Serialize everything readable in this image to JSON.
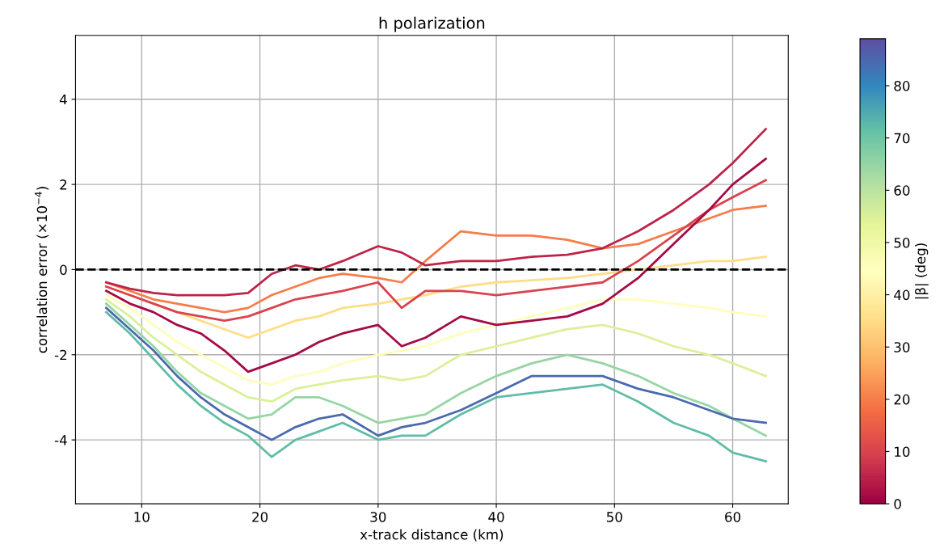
{
  "chart_data": {
    "type": "line",
    "title": "h polarization",
    "xlabel": "x-track distance (km)",
    "ylabel": "correlation error (×10$^{−4}$)",
    "clabel": "|β| (deg)",
    "x": [
      7,
      9,
      11,
      13,
      15,
      17,
      19,
      21,
      23,
      25,
      27,
      30,
      32,
      34,
      37,
      40,
      43,
      46,
      49,
      52,
      55,
      58,
      60,
      62.8
    ],
    "series": [
      {
        "color": "#fdfebd",
        "values": [
          -0.6,
          -0.9,
          -1.3,
          -1.7,
          -2.0,
          -2.3,
          -2.6,
          -2.7,
          -2.5,
          -2.4,
          -2.2,
          -2.0,
          -1.9,
          -1.8,
          -1.5,
          -1.3,
          -1.1,
          -0.9,
          -0.7,
          -0.7,
          -0.8,
          -0.9,
          -1.0,
          -1.1
        ]
      },
      {
        "color": "#fedd87",
        "values": [
          -0.4,
          -0.6,
          -0.8,
          -1.0,
          -1.2,
          -1.4,
          -1.6,
          -1.4,
          -1.2,
          -1.1,
          -0.9,
          -0.8,
          -0.7,
          -0.6,
          -0.4,
          -0.3,
          -0.25,
          -0.2,
          -0.1,
          0.0,
          0.1,
          0.2,
          0.2,
          0.3
        ]
      },
      {
        "color": "#dbf09a",
        "values": [
          -0.7,
          -1.1,
          -1.6,
          -2.0,
          -2.4,
          -2.7,
          -3.0,
          -3.1,
          -2.8,
          -2.7,
          -2.6,
          -2.5,
          -2.6,
          -2.5,
          -2.0,
          -1.8,
          -1.6,
          -1.4,
          -1.3,
          -1.5,
          -1.8,
          -2.0,
          -2.2,
          -2.5
        ]
      },
      {
        "color": "#96d5a4",
        "values": [
          -0.8,
          -1.3,
          -1.8,
          -2.4,
          -2.9,
          -3.2,
          -3.5,
          -3.4,
          -3.0,
          -3.0,
          -3.2,
          -3.6,
          -3.5,
          -3.4,
          -2.9,
          -2.5,
          -2.2,
          -2.0,
          -2.2,
          -2.5,
          -2.9,
          -3.2,
          -3.5,
          -3.9
        ]
      },
      {
        "color": "#4a69ae",
        "values": [
          -0.9,
          -1.4,
          -1.9,
          -2.5,
          -3.0,
          -3.4,
          -3.7,
          -4.0,
          -3.7,
          -3.5,
          -3.4,
          -3.9,
          -3.7,
          -3.6,
          -3.3,
          -2.9,
          -2.5,
          -2.5,
          -2.5,
          -2.8,
          -3.0,
          -3.3,
          -3.5,
          -3.6
        ]
      },
      {
        "color": "#61bca7",
        "values": [
          -1.0,
          -1.5,
          -2.1,
          -2.7,
          -3.2,
          -3.6,
          -3.9,
          -4.4,
          -4.0,
          -3.8,
          -3.6,
          -4.0,
          -3.9,
          -3.9,
          -3.4,
          -3.0,
          -2.9,
          -2.8,
          -2.7,
          -3.1,
          -3.6,
          -3.9,
          -4.3,
          -4.5
        ]
      },
      {
        "color": "#f67d4a",
        "values": [
          -0.3,
          -0.5,
          -0.7,
          -0.8,
          -0.9,
          -1.0,
          -0.9,
          -0.6,
          -0.4,
          -0.2,
          -0.1,
          -0.2,
          -0.3,
          0.2,
          0.9,
          0.8,
          0.8,
          0.7,
          0.5,
          0.6,
          0.9,
          1.2,
          1.4,
          1.5
        ]
      },
      {
        "color": "#d9434e",
        "values": [
          -0.4,
          -0.6,
          -0.8,
          -1.0,
          -1.1,
          -1.2,
          -1.1,
          -0.9,
          -0.7,
          -0.6,
          -0.5,
          -0.3,
          -0.9,
          -0.5,
          -0.5,
          -0.6,
          -0.5,
          -0.4,
          -0.3,
          0.2,
          0.8,
          1.4,
          1.7,
          2.1
        ]
      },
      {
        "color": "#a50a46",
        "values": [
          -0.5,
          -0.8,
          -1.0,
          -1.3,
          -1.5,
          -1.9,
          -2.4,
          -2.2,
          -2.0,
          -1.7,
          -1.5,
          -1.3,
          -1.8,
          -1.6,
          -1.1,
          -1.3,
          -1.2,
          -1.1,
          -0.8,
          -0.2,
          0.6,
          1.4,
          2.0,
          2.6
        ]
      },
      {
        "color": "#be2349",
        "values": [
          -0.3,
          -0.45,
          -0.55,
          -0.6,
          -0.6,
          -0.6,
          -0.55,
          -0.1,
          0.1,
          0.0,
          0.2,
          0.55,
          0.4,
          0.1,
          0.2,
          0.2,
          0.3,
          0.35,
          0.5,
          0.9,
          1.4,
          2.0,
          2.5,
          3.3
        ]
      }
    ],
    "xlim": [
      4.4,
      64.7
    ],
    "xticks": [
      10,
      20,
      30,
      40,
      50,
      60
    ],
    "ylim": [
      -5.5,
      5.5
    ],
    "yticks": [
      -4,
      -2,
      0,
      2,
      4
    ],
    "clim": [
      0,
      89
    ],
    "cticks": [
      0,
      10,
      20,
      30,
      40,
      50,
      60,
      70,
      80
    ],
    "ref_lines": [
      {
        "axis": "y",
        "value": 0,
        "color": "#000000",
        "line_style": "dashed"
      }
    ],
    "grid": true,
    "legend": false
  }
}
